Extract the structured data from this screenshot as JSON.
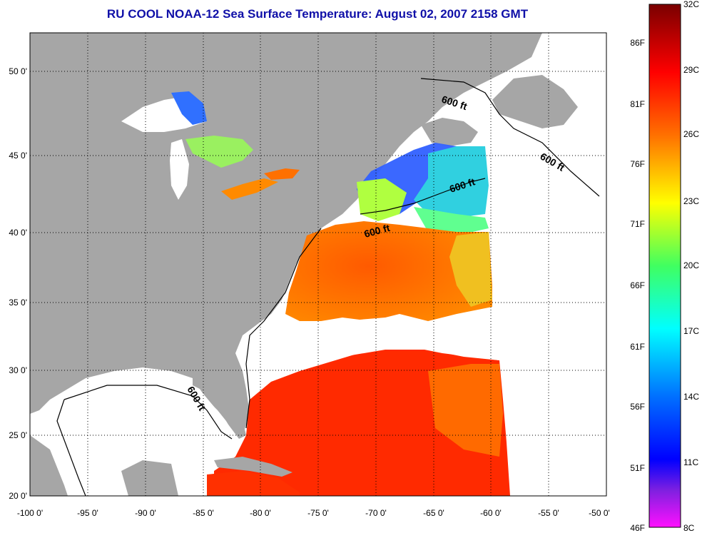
{
  "title": "RU COOL  NOAA-12  Sea Surface Temperature:  August 02, 2007 2158 GMT",
  "map": {
    "lon_range": [
      -100,
      -50
    ],
    "lat_range": [
      20,
      52.3
    ],
    "lon_ticks": [
      "-100 0'",
      "-95 0'",
      "-90 0'",
      "-85 0'",
      "-80 0'",
      "-75 0'",
      "-70 0'",
      "-65 0'",
      "-60 0'",
      "-55 0'",
      "-50 0'"
    ],
    "lat_ticks": [
      "20 0'",
      "25 0'",
      "30 0'",
      "35 0'",
      "40 0'",
      "45 0'",
      "50 0'"
    ],
    "contour_labels": [
      "600 ft",
      "600 ft",
      "600 ft",
      "600 ft",
      "600 ft"
    ],
    "colors": {
      "land": "#a6a6a6",
      "cloud_nodata": "#ffffff",
      "grid": "#000000"
    }
  },
  "colorbar": {
    "celsius_labels": [
      "32C",
      "29C",
      "26C",
      "23C",
      "20C",
      "17C",
      "14C",
      "11C",
      "8C"
    ],
    "fahrenheit_labels": [
      "86F",
      "81F",
      "76F",
      "71F",
      "66F",
      "61F",
      "56F",
      "51F",
      "46F"
    ],
    "range_c": [
      8,
      32
    ],
    "colors_top_to_bottom": [
      "#8b0000",
      "#ff0000",
      "#ff8000",
      "#ffff00",
      "#00ff80",
      "#00ffff",
      "#0080ff",
      "#0000ff",
      "#8000ff",
      "#ff00ff"
    ]
  }
}
